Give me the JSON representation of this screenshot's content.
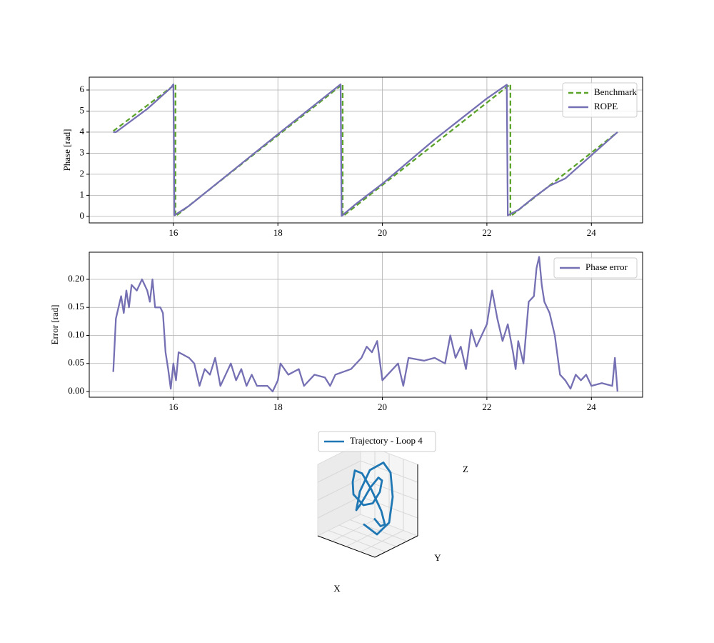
{
  "chart_data": [
    {
      "type": "line",
      "y_label": "Phase [rad]",
      "xlim": [
        14.39,
        24.98
      ],
      "ylim": [
        -0.31,
        6.61
      ],
      "xticks": [
        16,
        18,
        20,
        22,
        24
      ],
      "yticks": [
        0,
        1,
        2,
        3,
        4,
        5,
        6
      ],
      "grid": true,
      "legend": "upper right",
      "series": [
        {
          "name": "Benchmark",
          "color": "#5ba32b",
          "linestyle": "dashed",
          "x": [
            14.85,
            16.04,
            16.04,
            19.24,
            19.24,
            22.45,
            22.45,
            24.5
          ],
          "values": [
            4.05,
            6.28,
            0,
            6.28,
            0,
            6.28,
            0,
            4.0
          ]
        },
        {
          "name": "ROPE",
          "color": "#7570b3",
          "linestyle": "solid",
          "x": [
            14.85,
            14.9,
            15.5,
            15.95,
            16.0,
            16.02,
            16.3,
            17.0,
            18.0,
            19.2,
            19.22,
            19.5,
            20.0,
            21.0,
            22.0,
            22.38,
            22.4,
            22.6,
            22.9,
            23.2,
            23.5,
            24.5
          ],
          "values": [
            4.0,
            4.0,
            5.1,
            6.1,
            6.27,
            0.05,
            0.5,
            1.9,
            3.9,
            6.27,
            0.02,
            0.6,
            1.55,
            3.65,
            5.6,
            6.25,
            0.05,
            0.3,
            0.9,
            1.45,
            1.8,
            4.0
          ]
        }
      ]
    },
    {
      "type": "line",
      "y_label": "Error [rad]",
      "xlim": [
        14.39,
        24.98
      ],
      "ylim": [
        -0.0102,
        0.2484
      ],
      "xticks": [
        16,
        18,
        20,
        22,
        24
      ],
      "yticks": [
        {
          "value": 0,
          "label": "0.00"
        },
        0.05,
        {
          "value": 0.1,
          "label": "0.10"
        },
        0.15,
        {
          "value": 0.2,
          "label": "0.20"
        }
      ],
      "grid": true,
      "legend": "upper right",
      "series": [
        {
          "name": "Phase error",
          "color": "#7570b3",
          "linestyle": "solid",
          "x": [
            14.85,
            14.9,
            15.0,
            15.05,
            15.1,
            15.15,
            15.2,
            15.3,
            15.4,
            15.5,
            15.55,
            15.6,
            15.65,
            15.75,
            15.8,
            15.85,
            15.9,
            15.95,
            16.0,
            16.05,
            16.1,
            16.3,
            16.4,
            16.5,
            16.6,
            16.7,
            16.8,
            16.9,
            17.0,
            17.1,
            17.2,
            17.3,
            17.4,
            17.5,
            17.6,
            17.8,
            17.9,
            18.0,
            18.05,
            18.2,
            18.4,
            18.5,
            18.7,
            18.9,
            19.0,
            19.1,
            19.4,
            19.6,
            19.7,
            19.8,
            19.9,
            20.0,
            20.2,
            20.3,
            20.4,
            20.5,
            20.8,
            21.0,
            21.2,
            21.3,
            21.4,
            21.5,
            21.6,
            21.7,
            21.8,
            21.9,
            22.0,
            22.1,
            22.2,
            22.3,
            22.4,
            22.5,
            22.55,
            22.6,
            22.7,
            22.8,
            22.9,
            22.95,
            23.0,
            23.05,
            23.1,
            23.2,
            23.3,
            23.4,
            23.5,
            23.6,
            23.7,
            23.8,
            23.9,
            24.0,
            24.2,
            24.4,
            24.45,
            24.5
          ],
          "values": [
            0.035,
            0.13,
            0.17,
            0.14,
            0.18,
            0.15,
            0.19,
            0.18,
            0.2,
            0.18,
            0.16,
            0.2,
            0.15,
            0.15,
            0.14,
            0.07,
            0.04,
            0.005,
            0.05,
            0.02,
            0.07,
            0.06,
            0.05,
            0.01,
            0.04,
            0.03,
            0.06,
            0.01,
            0.03,
            0.05,
            0.02,
            0.04,
            0.01,
            0.03,
            0.01,
            0.01,
            0.0,
            0.02,
            0.05,
            0.03,
            0.04,
            0.01,
            0.03,
            0.025,
            0.01,
            0.03,
            0.04,
            0.06,
            0.08,
            0.07,
            0.09,
            0.02,
            0.04,
            0.05,
            0.01,
            0.06,
            0.055,
            0.06,
            0.05,
            0.1,
            0.06,
            0.08,
            0.04,
            0.11,
            0.08,
            0.1,
            0.12,
            0.18,
            0.13,
            0.09,
            0.12,
            0.07,
            0.04,
            0.09,
            0.05,
            0.16,
            0.17,
            0.22,
            0.24,
            0.19,
            0.16,
            0.14,
            0.1,
            0.03,
            0.02,
            0.005,
            0.03,
            0.02,
            0.03,
            0.01,
            0.015,
            0.01,
            0.06,
            0.0
          ]
        }
      ]
    },
    {
      "type": "line3d",
      "x_label": "X",
      "y_label": "Y",
      "z_label": "Z",
      "xlim": [
        -1,
        1
      ],
      "ylim": [
        -1,
        1
      ],
      "zlim": [
        -1,
        1
      ],
      "legend": "upper center",
      "series": [
        {
          "name": "Trajectory - Loop 4",
          "color": "#1f77b4",
          "x": [
            0.0,
            0.3,
            0.6,
            0.7,
            0.5,
            0.1,
            -0.3,
            -0.6,
            -0.8,
            -0.6,
            -0.2,
            0.2,
            0.5,
            0.6,
            0.4,
            0.0,
            -0.4,
            -0.5,
            -0.3,
            0.1,
            0.5,
            0.8,
            0.9,
            0.7,
            0.3
          ],
          "y": [
            0.3,
            0.2,
            0.0,
            -0.3,
            -0.5,
            -0.4,
            -0.2,
            0.1,
            0.4,
            0.6,
            0.5,
            0.3,
            0.0,
            -0.3,
            -0.4,
            -0.3,
            0.0,
            0.3,
            0.5,
            0.6,
            0.4,
            0.1,
            -0.2,
            -0.5,
            -0.6
          ],
          "z": [
            -0.6,
            -0.7,
            -0.5,
            0.0,
            0.6,
            0.9,
            0.8,
            0.3,
            -0.2,
            -0.5,
            -0.3,
            0.2,
            0.7,
            0.9,
            0.6,
            0.0,
            -0.4,
            0.0,
            0.6,
            0.9,
            0.8,
            0.3,
            -0.3,
            -0.6,
            -0.4
          ]
        }
      ]
    }
  ]
}
